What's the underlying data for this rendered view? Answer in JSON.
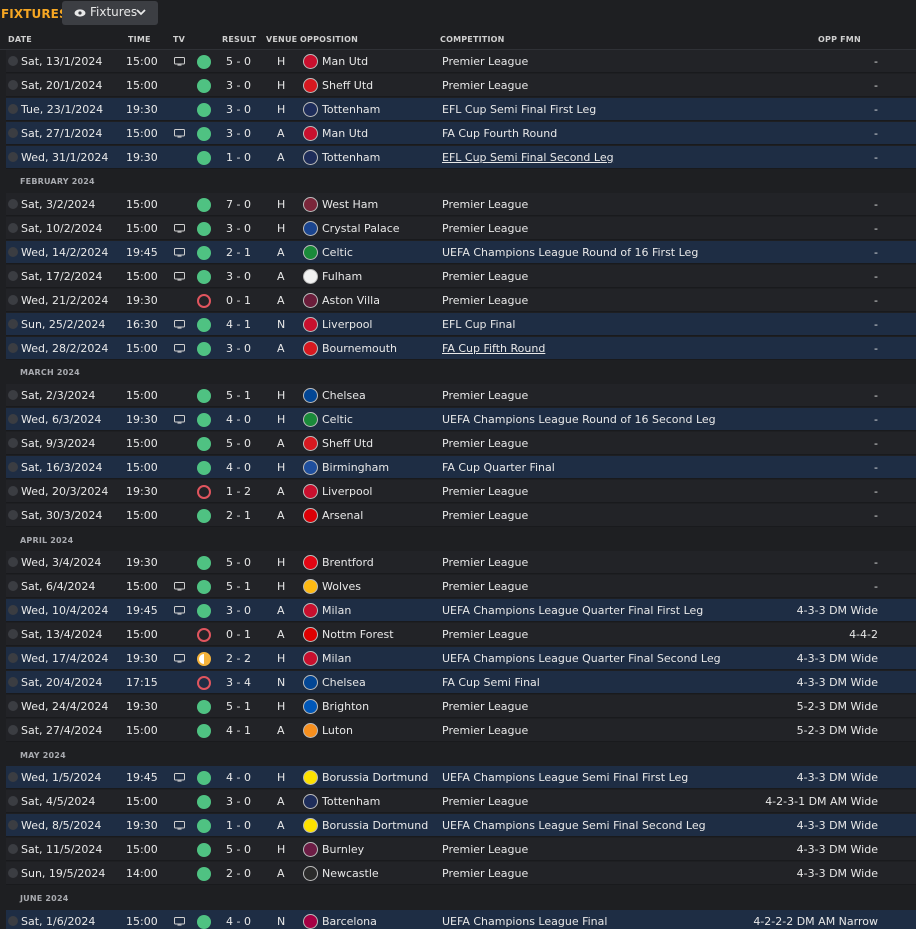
{
  "header": {
    "title": "FIXTURES",
    "view_button": "Fixtures"
  },
  "columns": {
    "date": "DATE",
    "time": "TIME",
    "tv": "TV",
    "result": "RESULT",
    "venue": "VENUE",
    "opposition": "OPPOSITION",
    "competition": "COMPETITION",
    "opp_fmn": "OPP FMN"
  },
  "colors": {
    "win": "#4fc282",
    "loss": "#e0555e",
    "draw": "#f5b33b",
    "accent": "#f5a623",
    "highlight_row": "#1e2d44"
  },
  "rows": [
    {
      "type": "fixture",
      "date": "Sat, 13/1/2024",
      "time": "15:00",
      "tv": true,
      "result": "W",
      "score": "5 - 0",
      "venue": "H",
      "opponent": "Man Utd",
      "badge": "#c8102e",
      "competition": "Premier League",
      "link": false,
      "fmn": "-",
      "hl": false
    },
    {
      "type": "fixture",
      "date": "Sat, 20/1/2024",
      "time": "15:00",
      "tv": false,
      "result": "W",
      "score": "3 - 0",
      "venue": "H",
      "opponent": "Sheff Utd",
      "badge": "#d71920",
      "competition": "Premier League",
      "link": false,
      "fmn": "-",
      "hl": false
    },
    {
      "type": "fixture",
      "date": "Tue, 23/1/2024",
      "time": "19:30",
      "tv": false,
      "result": "W",
      "score": "3 - 0",
      "venue": "H",
      "opponent": "Tottenham",
      "badge": "#1e2d5a",
      "competition": "EFL Cup Semi Final First Leg",
      "link": false,
      "fmn": "-",
      "hl": true
    },
    {
      "type": "fixture",
      "date": "Sat, 27/1/2024",
      "time": "15:00",
      "tv": true,
      "result": "W",
      "score": "3 - 0",
      "venue": "A",
      "opponent": "Man Utd",
      "badge": "#c8102e",
      "competition": "FA Cup Fourth Round",
      "link": false,
      "fmn": "-",
      "hl": true
    },
    {
      "type": "fixture",
      "date": "Wed, 31/1/2024",
      "time": "19:30",
      "tv": false,
      "result": "W",
      "score": "1 - 0",
      "venue": "A",
      "opponent": "Tottenham",
      "badge": "#1e2d5a",
      "competition": "EFL Cup Semi Final Second Leg",
      "link": true,
      "fmn": "-",
      "hl": true
    },
    {
      "type": "month",
      "label": "FEBRUARY 2024"
    },
    {
      "type": "fixture",
      "date": "Sat, 3/2/2024",
      "time": "15:00",
      "tv": false,
      "result": "W",
      "score": "7 - 0",
      "venue": "H",
      "opponent": "West Ham",
      "badge": "#7a263a",
      "competition": "Premier League",
      "link": false,
      "fmn": "-",
      "hl": false
    },
    {
      "type": "fixture",
      "date": "Sat, 10/2/2024",
      "time": "15:00",
      "tv": true,
      "result": "W",
      "score": "3 - 0",
      "venue": "H",
      "opponent": "Crystal Palace",
      "badge": "#1b458f",
      "competition": "Premier League",
      "link": false,
      "fmn": "-",
      "hl": false
    },
    {
      "type": "fixture",
      "date": "Wed, 14/2/2024",
      "time": "19:45",
      "tv": true,
      "result": "W",
      "score": "2 - 1",
      "venue": "A",
      "opponent": "Celtic",
      "badge": "#1a8a3a",
      "competition": "UEFA Champions League Round of 16 First Leg",
      "link": false,
      "fmn": "-",
      "hl": true
    },
    {
      "type": "fixture",
      "date": "Sat, 17/2/2024",
      "time": "15:00",
      "tv": true,
      "result": "W",
      "score": "3 - 0",
      "venue": "A",
      "opponent": "Fulham",
      "badge": "#f2f2f2",
      "competition": "Premier League",
      "link": false,
      "fmn": "-",
      "hl": false
    },
    {
      "type": "fixture",
      "date": "Wed, 21/2/2024",
      "time": "19:30",
      "tv": false,
      "result": "L",
      "score": "0 - 1",
      "venue": "A",
      "opponent": "Aston Villa",
      "badge": "#6a1d3a",
      "competition": "Premier League",
      "link": false,
      "fmn": "-",
      "hl": false
    },
    {
      "type": "fixture",
      "date": "Sun, 25/2/2024",
      "time": "16:30",
      "tv": true,
      "result": "W",
      "score": "4 - 1",
      "venue": "N",
      "opponent": "Liverpool",
      "badge": "#c8102e",
      "competition": "EFL Cup Final",
      "link": false,
      "fmn": "-",
      "hl": true
    },
    {
      "type": "fixture",
      "date": "Wed, 28/2/2024",
      "time": "15:00",
      "tv": true,
      "result": "W",
      "score": "3 - 0",
      "venue": "A",
      "opponent": "Bournemouth",
      "badge": "#d71920",
      "competition": "FA Cup Fifth Round",
      "link": true,
      "fmn": "-",
      "hl": true
    },
    {
      "type": "month",
      "label": "MARCH 2024"
    },
    {
      "type": "fixture",
      "date": "Sat, 2/3/2024",
      "time": "15:00",
      "tv": false,
      "result": "W",
      "score": "5 - 1",
      "venue": "H",
      "opponent": "Chelsea",
      "badge": "#034694",
      "competition": "Premier League",
      "link": false,
      "fmn": "-",
      "hl": false
    },
    {
      "type": "fixture",
      "date": "Wed, 6/3/2024",
      "time": "19:30",
      "tv": true,
      "result": "W",
      "score": "4 - 0",
      "venue": "H",
      "opponent": "Celtic",
      "badge": "#1a8a3a",
      "competition": "UEFA Champions League Round of 16 Second Leg",
      "link": false,
      "fmn": "-",
      "hl": true
    },
    {
      "type": "fixture",
      "date": "Sat, 9/3/2024",
      "time": "15:00",
      "tv": false,
      "result": "W",
      "score": "5 - 0",
      "venue": "A",
      "opponent": "Sheff Utd",
      "badge": "#d71920",
      "competition": "Premier League",
      "link": false,
      "fmn": "-",
      "hl": false
    },
    {
      "type": "fixture",
      "date": "Sat, 16/3/2024",
      "time": "15:00",
      "tv": false,
      "result": "W",
      "score": "4 - 0",
      "venue": "H",
      "opponent": "Birmingham",
      "badge": "#1f4f9e",
      "competition": "FA Cup Quarter Final",
      "link": false,
      "fmn": "-",
      "hl": true
    },
    {
      "type": "fixture",
      "date": "Wed, 20/3/2024",
      "time": "19:30",
      "tv": false,
      "result": "L",
      "score": "1 - 2",
      "venue": "A",
      "opponent": "Liverpool",
      "badge": "#c8102e",
      "competition": "Premier League",
      "link": false,
      "fmn": "-",
      "hl": false
    },
    {
      "type": "fixture",
      "date": "Sat, 30/3/2024",
      "time": "15:00",
      "tv": false,
      "result": "W",
      "score": "2 - 1",
      "venue": "A",
      "opponent": "Arsenal",
      "badge": "#db0007",
      "competition": "Premier League",
      "link": false,
      "fmn": "-",
      "hl": false
    },
    {
      "type": "month",
      "label": "APRIL 2024"
    },
    {
      "type": "fixture",
      "date": "Wed, 3/4/2024",
      "time": "19:30",
      "tv": false,
      "result": "W",
      "score": "5 - 0",
      "venue": "H",
      "opponent": "Brentford",
      "badge": "#e30613",
      "competition": "Premier League",
      "link": false,
      "fmn": "-",
      "hl": false
    },
    {
      "type": "fixture",
      "date": "Sat, 6/4/2024",
      "time": "15:00",
      "tv": true,
      "result": "W",
      "score": "5 - 1",
      "venue": "H",
      "opponent": "Wolves",
      "badge": "#fdb913",
      "competition": "Premier League",
      "link": false,
      "fmn": "-",
      "hl": false
    },
    {
      "type": "fixture",
      "date": "Wed, 10/4/2024",
      "time": "19:45",
      "tv": true,
      "result": "W",
      "score": "3 - 0",
      "venue": "A",
      "opponent": "Milan",
      "badge": "#c8102e",
      "competition": "UEFA Champions League Quarter Final First Leg",
      "link": false,
      "fmn": "4-3-3 DM Wide",
      "hl": true
    },
    {
      "type": "fixture",
      "date": "Sat, 13/4/2024",
      "time": "15:00",
      "tv": false,
      "result": "L",
      "score": "0 - 1",
      "venue": "A",
      "opponent": "Nottm Forest",
      "badge": "#dd0000",
      "competition": "Premier League",
      "link": false,
      "fmn": "4-4-2",
      "hl": false
    },
    {
      "type": "fixture",
      "date": "Wed, 17/4/2024",
      "time": "19:30",
      "tv": true,
      "result": "D",
      "score": "2 - 2",
      "venue": "H",
      "opponent": "Milan",
      "badge": "#c8102e",
      "competition": "UEFA Champions League Quarter Final Second Leg",
      "link": false,
      "fmn": "4-3-3 DM Wide",
      "hl": true
    },
    {
      "type": "fixture",
      "date": "Sat, 20/4/2024",
      "time": "17:15",
      "tv": false,
      "result": "L",
      "score": "3 - 4",
      "venue": "N",
      "opponent": "Chelsea",
      "badge": "#034694",
      "competition": "FA Cup Semi Final",
      "link": false,
      "fmn": "4-3-3 DM Wide",
      "hl": true
    },
    {
      "type": "fixture",
      "date": "Wed, 24/4/2024",
      "time": "19:30",
      "tv": false,
      "result": "W",
      "score": "5 - 1",
      "venue": "H",
      "opponent": "Brighton",
      "badge": "#0057b8",
      "competition": "Premier League",
      "link": false,
      "fmn": "5-2-3 DM Wide",
      "hl": false
    },
    {
      "type": "fixture",
      "date": "Sat, 27/4/2024",
      "time": "15:00",
      "tv": false,
      "result": "W",
      "score": "4 - 1",
      "venue": "A",
      "opponent": "Luton",
      "badge": "#f78f1e",
      "competition": "Premier League",
      "link": false,
      "fmn": "5-2-3 DM Wide",
      "hl": false
    },
    {
      "type": "month",
      "label": "MAY 2024"
    },
    {
      "type": "fixture",
      "date": "Wed, 1/5/2024",
      "time": "19:45",
      "tv": true,
      "result": "W",
      "score": "4 - 0",
      "venue": "H",
      "opponent": "Borussia Dortmund",
      "badge": "#fde100",
      "competition": "UEFA Champions League Semi Final First Leg",
      "link": false,
      "fmn": "4-3-3 DM Wide",
      "hl": true
    },
    {
      "type": "fixture",
      "date": "Sat, 4/5/2024",
      "time": "15:00",
      "tv": false,
      "result": "W",
      "score": "3 - 0",
      "venue": "A",
      "opponent": "Tottenham",
      "badge": "#1e2d5a",
      "competition": "Premier League",
      "link": false,
      "fmn": "4-2-3-1 DM AM Wide",
      "hl": false
    },
    {
      "type": "fixture",
      "date": "Wed, 8/5/2024",
      "time": "19:30",
      "tv": true,
      "result": "W",
      "score": "1 - 0",
      "venue": "A",
      "opponent": "Borussia Dortmund",
      "badge": "#fde100",
      "competition": "UEFA Champions League Semi Final Second Leg",
      "link": false,
      "fmn": "4-3-3 DM Wide",
      "hl": true
    },
    {
      "type": "fixture",
      "date": "Sat, 11/5/2024",
      "time": "15:00",
      "tv": false,
      "result": "W",
      "score": "5 - 0",
      "venue": "H",
      "opponent": "Burnley",
      "badge": "#6c1d45",
      "competition": "Premier League",
      "link": false,
      "fmn": "4-3-3 DM Wide",
      "hl": false
    },
    {
      "type": "fixture",
      "date": "Sun, 19/5/2024",
      "time": "14:00",
      "tv": false,
      "result": "W",
      "score": "2 - 0",
      "venue": "A",
      "opponent": "Newcastle",
      "badge": "#2b2b2b",
      "competition": "Premier League",
      "link": false,
      "fmn": "4-3-3 DM Wide",
      "hl": false
    },
    {
      "type": "month",
      "label": "JUNE 2024"
    },
    {
      "type": "fixture",
      "date": "Sat, 1/6/2024",
      "time": "15:00",
      "tv": true,
      "result": "W",
      "score": "4 - 0",
      "venue": "N",
      "opponent": "Barcelona",
      "badge": "#a50044",
      "competition": "UEFA Champions League Final",
      "link": false,
      "fmn": "4-2-2-2 DM AM Narrow",
      "hl": true
    }
  ]
}
